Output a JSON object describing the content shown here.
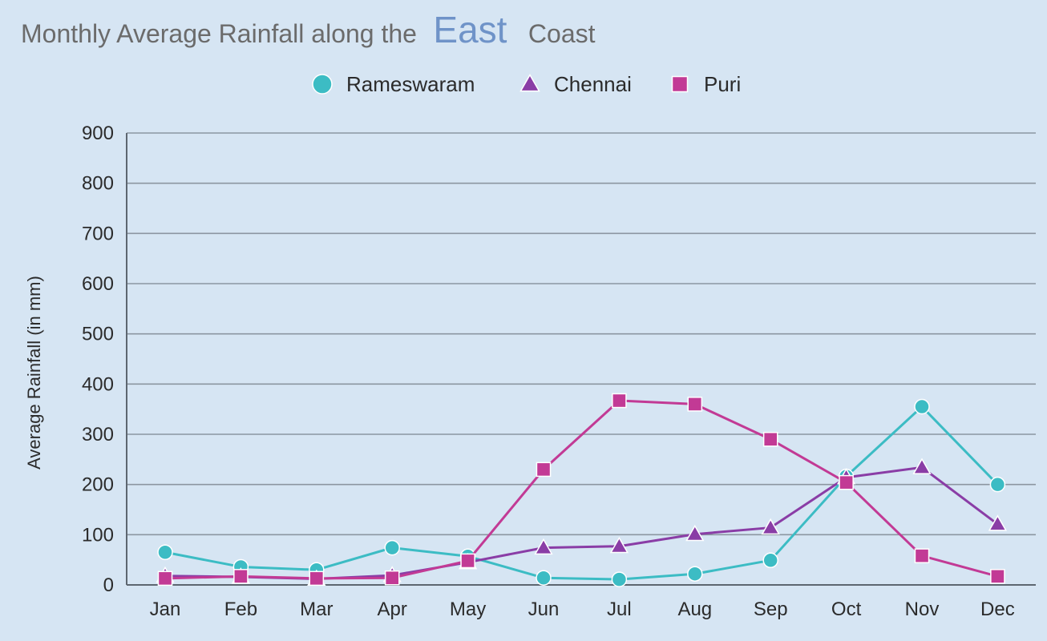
{
  "chart_data": {
    "type": "line",
    "title": {
      "prefix": "Monthly Average Rainfall along the",
      "highlight": "East",
      "suffix": "Coast"
    },
    "ylabel": "Average Rainfall (in mm)",
    "xlabel": "",
    "categories": [
      "Jan",
      "Feb",
      "Mar",
      "Apr",
      "May",
      "Jun",
      "Jul",
      "Aug",
      "Sep",
      "Oct",
      "Nov",
      "Dec"
    ],
    "ylim": [
      0,
      900
    ],
    "yticks": [
      0,
      100,
      200,
      300,
      400,
      500,
      600,
      700,
      800,
      900
    ],
    "grid": true,
    "legend_position": "top-center",
    "series": [
      {
        "name": "Rameswaram",
        "marker": "circle",
        "color": "#3cbcc4",
        "values": [
          65,
          36,
          30,
          74,
          57,
          14,
          11,
          22,
          49,
          216,
          355,
          200
        ]
      },
      {
        "name": "Chennai",
        "marker": "triangle",
        "color": "#8a3da6",
        "values": [
          18,
          16,
          12,
          19,
          45,
          74,
          77,
          101,
          114,
          214,
          234,
          121
        ]
      },
      {
        "name": "Puri",
        "marker": "square",
        "color": "#c23a95",
        "values": [
          13,
          17,
          13,
          14,
          48,
          230,
          367,
          360,
          290,
          204,
          58,
          17
        ]
      }
    ]
  }
}
